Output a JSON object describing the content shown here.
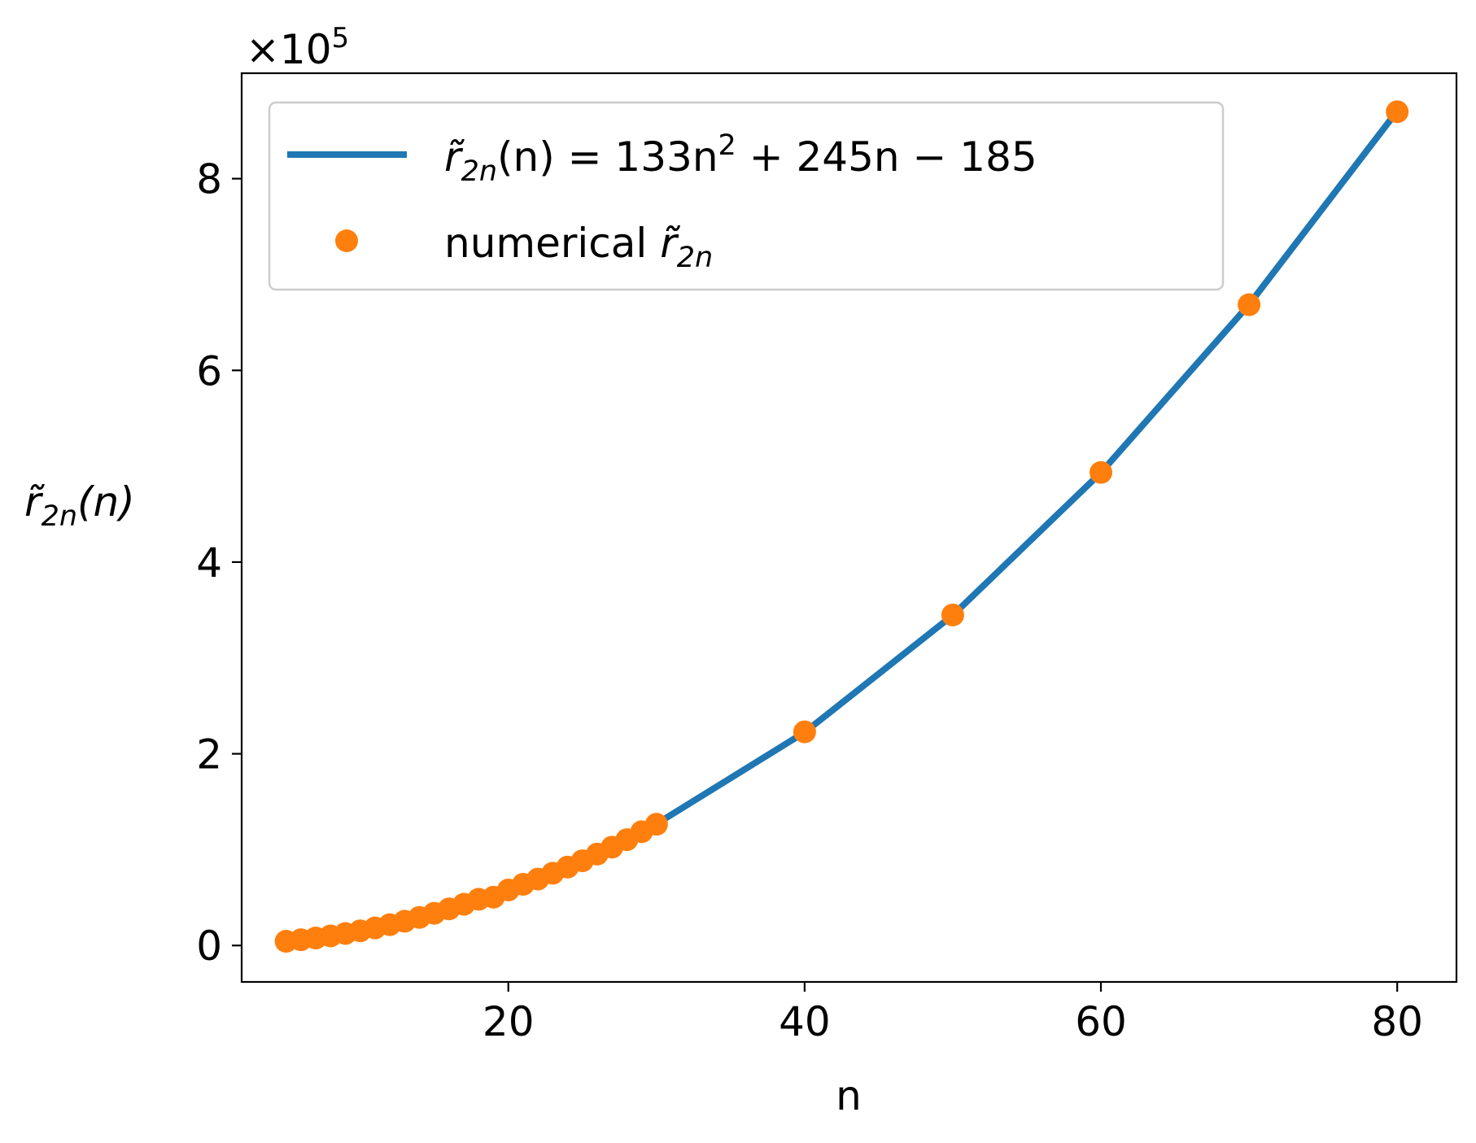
{
  "chart_data": {
    "type": "line",
    "title": "",
    "xlabel": "n",
    "ylabel": {
      "base": "r̃",
      "sub": "2n",
      "tail": "(n)"
    },
    "y_multiplier": {
      "prefix": "×10",
      "exp": "5"
    },
    "xlim": [
      2,
      84
    ],
    "ylim": [
      -0.38,
      9.1
    ],
    "y_scale_factor": 100000,
    "x_ticks": [
      20,
      40,
      60,
      80
    ],
    "x_tick_labels": [
      "20",
      "40",
      "60",
      "80"
    ],
    "y_ticks": [
      0,
      2,
      4,
      6,
      8
    ],
    "y_tick_labels": [
      "0",
      "2",
      "4",
      "6",
      "8"
    ],
    "grid": false,
    "legend_position": "top-left",
    "fit_line": {
      "legend_label": {
        "base": "r̃",
        "sub": "2n",
        "mid": "(n) = 133n",
        "sup": "2",
        "tail": " + 245n − 185"
      },
      "color": "#1f77b4",
      "coefficients": [
        133,
        245,
        -185
      ],
      "x_range": [
        5,
        80
      ]
    },
    "points": {
      "legend_label": {
        "text": "numerical ",
        "base": "r̃",
        "sub": "2n"
      },
      "color": "#ff7f0e",
      "x": [
        5,
        6,
        7,
        8,
        9,
        10,
        11,
        12,
        13,
        14,
        15,
        16,
        17,
        18,
        19,
        20,
        21,
        22,
        23,
        24,
        25,
        26,
        27,
        28,
        29,
        30,
        40,
        50,
        60,
        70,
        80
      ],
      "y": [
        0.044,
        0.06,
        0.078,
        0.1,
        0.125,
        0.153,
        0.183,
        0.217,
        0.253,
        0.293,
        0.336,
        0.382,
        0.43,
        0.482,
        0.504,
        0.579,
        0.638,
        0.693,
        0.754,
        0.818,
        0.884,
        0.954,
        1.026,
        1.104,
        1.187,
        1.265,
        2.229,
        3.448,
        4.935,
        6.685,
        8.698
      ]
    }
  }
}
